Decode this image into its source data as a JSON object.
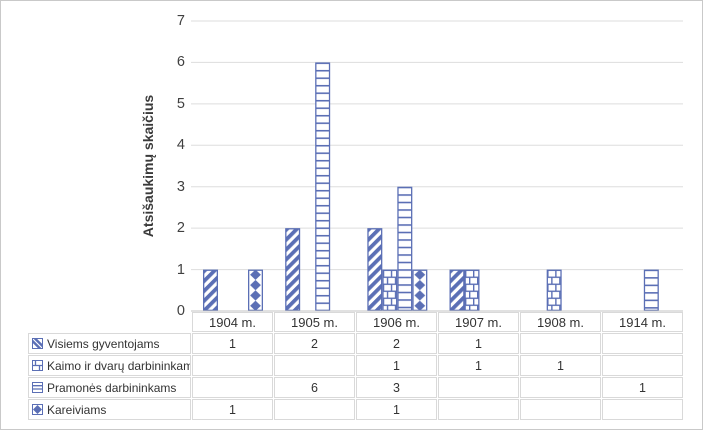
{
  "chart_data": {
    "type": "bar",
    "title": "",
    "xlabel": "",
    "ylabel": "Atsišaukimų skaičius",
    "ylim": [
      0,
      7
    ],
    "y_ticks": [
      0,
      1,
      2,
      3,
      4,
      5,
      6,
      7
    ],
    "grid": true,
    "legend_position": "bottom-table",
    "accent_color": "#5B6FB5",
    "gridline_color": "#DDDDDD",
    "axis_line_color": "#C3C3C3",
    "table_border_color": "#D9D9D9",
    "categories": [
      "1904 m.",
      "1905 m.",
      "1906 m.",
      "1907 m.",
      "1908 m.",
      "1914 m."
    ],
    "series": [
      {
        "name": "Visiems gyventojams",
        "pattern": "diagonal-stripes",
        "values": [
          1,
          2,
          2,
          1,
          null,
          null
        ]
      },
      {
        "name": "Kaimo ir dvarų darbininkams",
        "pattern": "bricks",
        "values": [
          null,
          null,
          1,
          1,
          1,
          null
        ]
      },
      {
        "name": "Pramonės darbininkams",
        "pattern": "horizontal-lines",
        "values": [
          null,
          6,
          3,
          null,
          null,
          1
        ]
      },
      {
        "name": "Kareiviams",
        "pattern": "diamonds",
        "values": [
          1,
          null,
          1,
          null,
          null,
          null
        ]
      }
    ]
  }
}
